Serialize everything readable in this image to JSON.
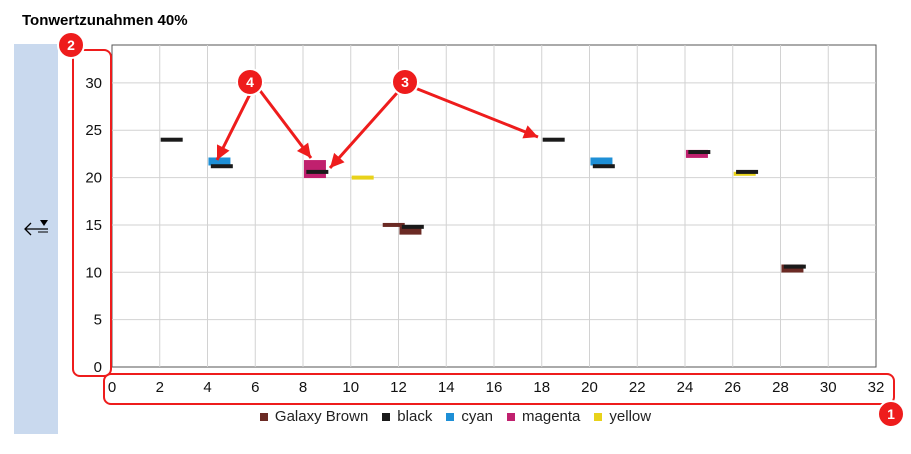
{
  "title": "Tonwertzunahmen 40%",
  "chart_data": {
    "type": "bar",
    "xlim": [
      0,
      32
    ],
    "ylim": [
      0,
      34
    ],
    "x_ticks": [
      0,
      2,
      4,
      6,
      8,
      10,
      12,
      14,
      16,
      18,
      20,
      22,
      24,
      26,
      28,
      30,
      32
    ],
    "y_ticks": [
      0,
      5,
      10,
      15,
      20,
      25,
      30
    ],
    "grid": true,
    "legend_position": "bottom",
    "series": [
      {
        "name": "Galaxy Brown",
        "color": "#6b2a24"
      },
      {
        "name": "black",
        "color": "#1a1a1a"
      },
      {
        "name": "cyan",
        "color": "#1e8fd6"
      },
      {
        "name": "magenta",
        "color": "#c0206e"
      },
      {
        "name": "yellow",
        "color": "#e8d21a"
      }
    ],
    "marks": [
      {
        "series": "black",
        "x": 2.5,
        "y": 24.0
      },
      {
        "series": "cyan",
        "x": 4.5,
        "y": 21.7
      },
      {
        "series": "black",
        "x": 4.6,
        "y": 21.2
      },
      {
        "series": "magenta",
        "x": 8.5,
        "y": 20.9
      },
      {
        "series": "black",
        "x": 8.6,
        "y": 20.6
      },
      {
        "series": "yellow",
        "x": 10.5,
        "y": 20.0
      },
      {
        "series": "Galaxy Brown",
        "x": 11.8,
        "y": 15.0
      },
      {
        "series": "Galaxy Brown",
        "x": 12.5,
        "y": 14.4
      },
      {
        "series": "black",
        "x": 12.6,
        "y": 14.8
      },
      {
        "series": "black",
        "x": 18.5,
        "y": 24.0
      },
      {
        "series": "cyan",
        "x": 20.5,
        "y": 21.7
      },
      {
        "series": "black",
        "x": 20.6,
        "y": 21.2
      },
      {
        "series": "magenta",
        "x": 24.5,
        "y": 22.5
      },
      {
        "series": "black",
        "x": 24.6,
        "y": 22.7
      },
      {
        "series": "yellow",
        "x": 26.5,
        "y": 20.4
      },
      {
        "series": "black",
        "x": 26.6,
        "y": 20.6
      },
      {
        "series": "Galaxy Brown",
        "x": 28.5,
        "y": 10.4
      },
      {
        "series": "black",
        "x": 28.6,
        "y": 10.6
      }
    ]
  },
  "annotations": [
    {
      "label": "1"
    },
    {
      "label": "2"
    },
    {
      "label": "3"
    },
    {
      "label": "4"
    }
  ],
  "sidebar": {
    "icon": "level-arrow-icon"
  }
}
